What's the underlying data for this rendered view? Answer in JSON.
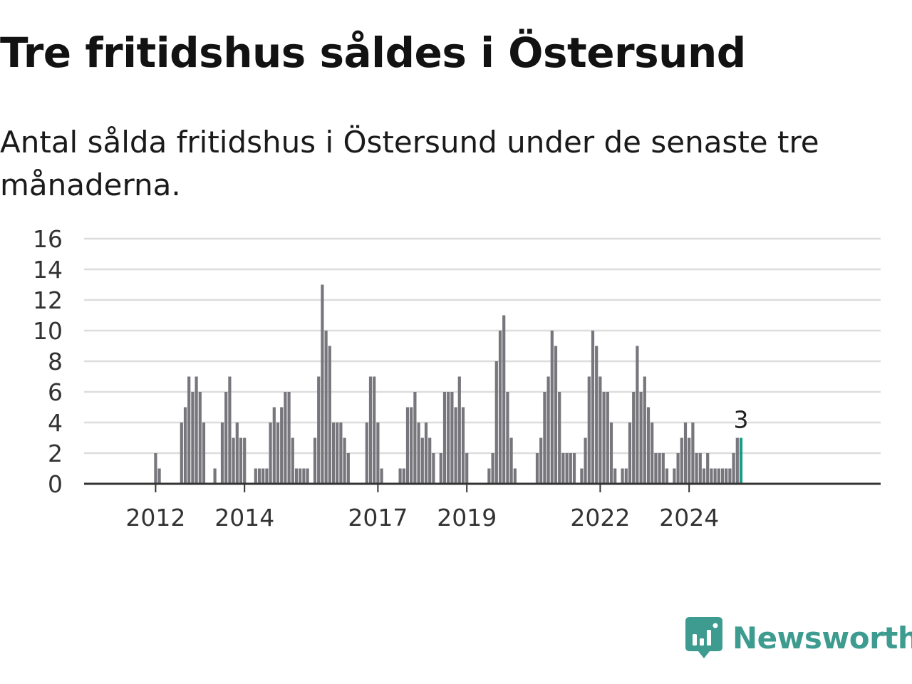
{
  "title": "Tre fritidshus såldes i Östersund",
  "subtitle": "Antal sålda fritidshus i Östersund under de senaste tre månaderna.",
  "brand": {
    "name": "Newsworthy",
    "icon": "newsworthy-logo-icon",
    "color": "#3d9b90"
  },
  "colors": {
    "bar": "#76767c",
    "highlight": "#1a9c8c",
    "grid": "#dddddd",
    "axis": "#333333"
  },
  "chart_data": {
    "type": "bar",
    "title": "Tre fritidshus såldes i Östersund",
    "subtitle": "Antal sålda fritidshus i Östersund under de senaste tre månaderna.",
    "xlabel": "",
    "ylabel": "",
    "ylim": [
      0,
      16
    ],
    "yticks": [
      0,
      2,
      4,
      6,
      8,
      10,
      12,
      14,
      16
    ],
    "grid": true,
    "first_month": "2011-04",
    "x_tick_labels": [
      {
        "label": "2012",
        "month": "2012-01"
      },
      {
        "label": "2014",
        "month": "2014-01"
      },
      {
        "label": "2017",
        "month": "2017-01"
      },
      {
        "label": "2019",
        "month": "2019-01"
      },
      {
        "label": "2022",
        "month": "2022-01"
      },
      {
        "label": "2024",
        "month": "2024-01"
      }
    ],
    "values": [
      0,
      0,
      0,
      0,
      0,
      0,
      0,
      0,
      0,
      2,
      1,
      0,
      0,
      0,
      0,
      0,
      4,
      5,
      7,
      6,
      7,
      6,
      4,
      0,
      0,
      1,
      0,
      4,
      6,
      7,
      3,
      4,
      3,
      3,
      0,
      0,
      1,
      1,
      1,
      1,
      4,
      5,
      4,
      5,
      6,
      6,
      3,
      1,
      1,
      1,
      1,
      0,
      3,
      7,
      13,
      10,
      9,
      4,
      4,
      4,
      3,
      2,
      0,
      0,
      0,
      0,
      4,
      7,
      7,
      4,
      1,
      0,
      0,
      0,
      0,
      1,
      1,
      5,
      5,
      6,
      4,
      3,
      4,
      3,
      2,
      0,
      2,
      6,
      6,
      6,
      5,
      7,
      5,
      2,
      0,
      0,
      0,
      0,
      0,
      1,
      2,
      8,
      10,
      11,
      6,
      3,
      1,
      0,
      0,
      0,
      0,
      0,
      2,
      3,
      6,
      7,
      10,
      9,
      6,
      2,
      2,
      2,
      2,
      0,
      1,
      3,
      7,
      10,
      9,
      7,
      6,
      6,
      4,
      1,
      0,
      1,
      1,
      4,
      6,
      9,
      6,
      7,
      5,
      4,
      2,
      2,
      2,
      1,
      0,
      1,
      2,
      3,
      4,
      3,
      4,
      2,
      2,
      1,
      2,
      1,
      1,
      1,
      1,
      1,
      1,
      2,
      3,
      3
    ],
    "highlight_last": 1,
    "data_labels": [
      {
        "index": 167,
        "text": "3"
      }
    ]
  }
}
